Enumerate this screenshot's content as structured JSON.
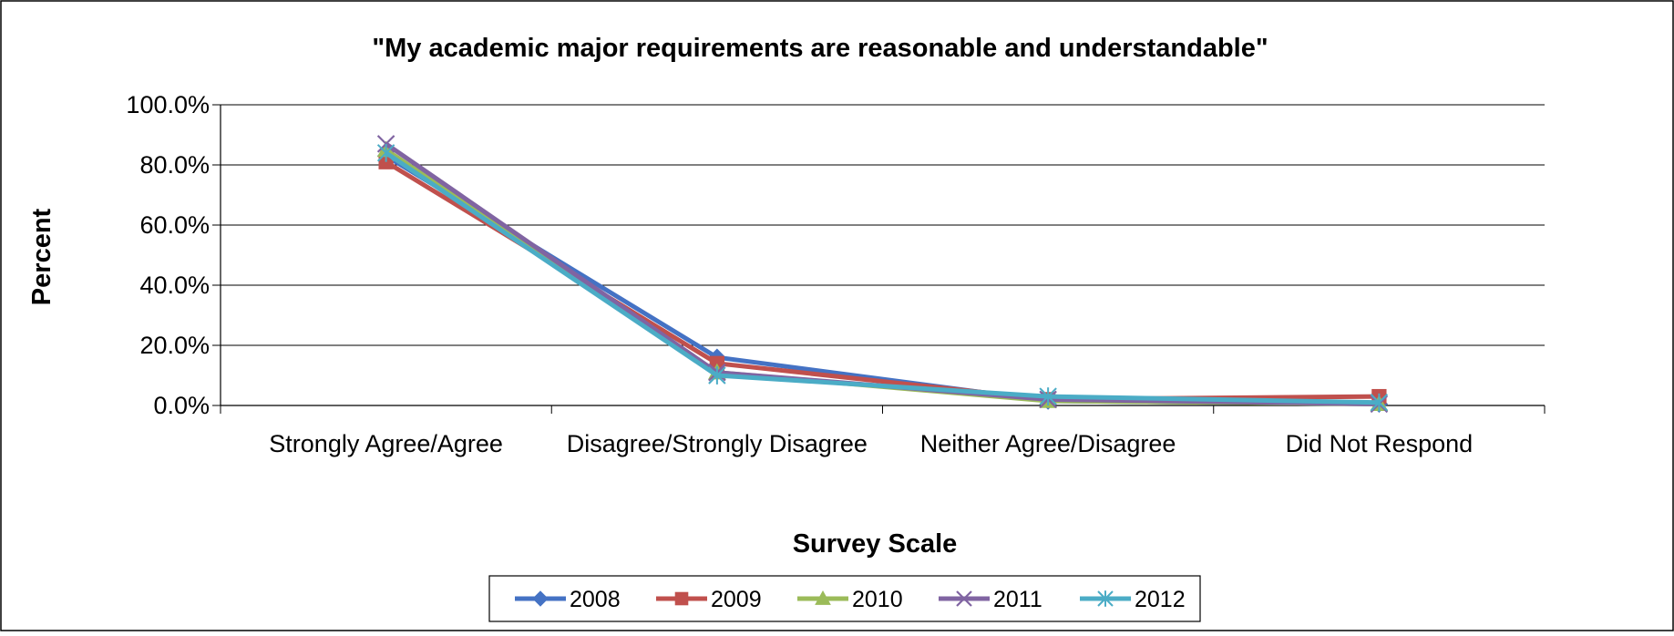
{
  "chart_data": {
    "type": "line",
    "title": "\"My academic major requirements are reasonable and understandable\"",
    "xlabel": "Survey Scale",
    "ylabel": "Percent",
    "categories": [
      "Strongly Agree/Agree",
      "Disagree/Strongly Disagree",
      "Neither Agree/Disagree",
      "Did Not Respond"
    ],
    "ylim": [
      0,
      100
    ],
    "yticks": [
      0,
      20,
      40,
      60,
      80,
      100
    ],
    "ytick_labels": [
      "0.0%",
      "20.0%",
      "40.0%",
      "60.0%",
      "80.0%",
      "100.0%"
    ],
    "grid": true,
    "legend_position": "bottom",
    "series": [
      {
        "name": "2008",
        "color": "#4472C4",
        "marker": "diamond",
        "values": [
          83.0,
          16.0,
          1.5,
          0.5
        ]
      },
      {
        "name": "2009",
        "color": "#C0504D",
        "marker": "square",
        "values": [
          81.0,
          14.0,
          2.0,
          3.0
        ]
      },
      {
        "name": "2010",
        "color": "#9BBB59",
        "marker": "triangle",
        "values": [
          85.0,
          11.0,
          1.5,
          0.5
        ]
      },
      {
        "name": "2011",
        "color": "#8064A2",
        "marker": "x",
        "values": [
          87.0,
          11.0,
          2.0,
          0.5
        ]
      },
      {
        "name": "2012",
        "color": "#4BACC6",
        "marker": "star",
        "values": [
          84.0,
          10.0,
          3.0,
          1.0
        ]
      }
    ]
  }
}
